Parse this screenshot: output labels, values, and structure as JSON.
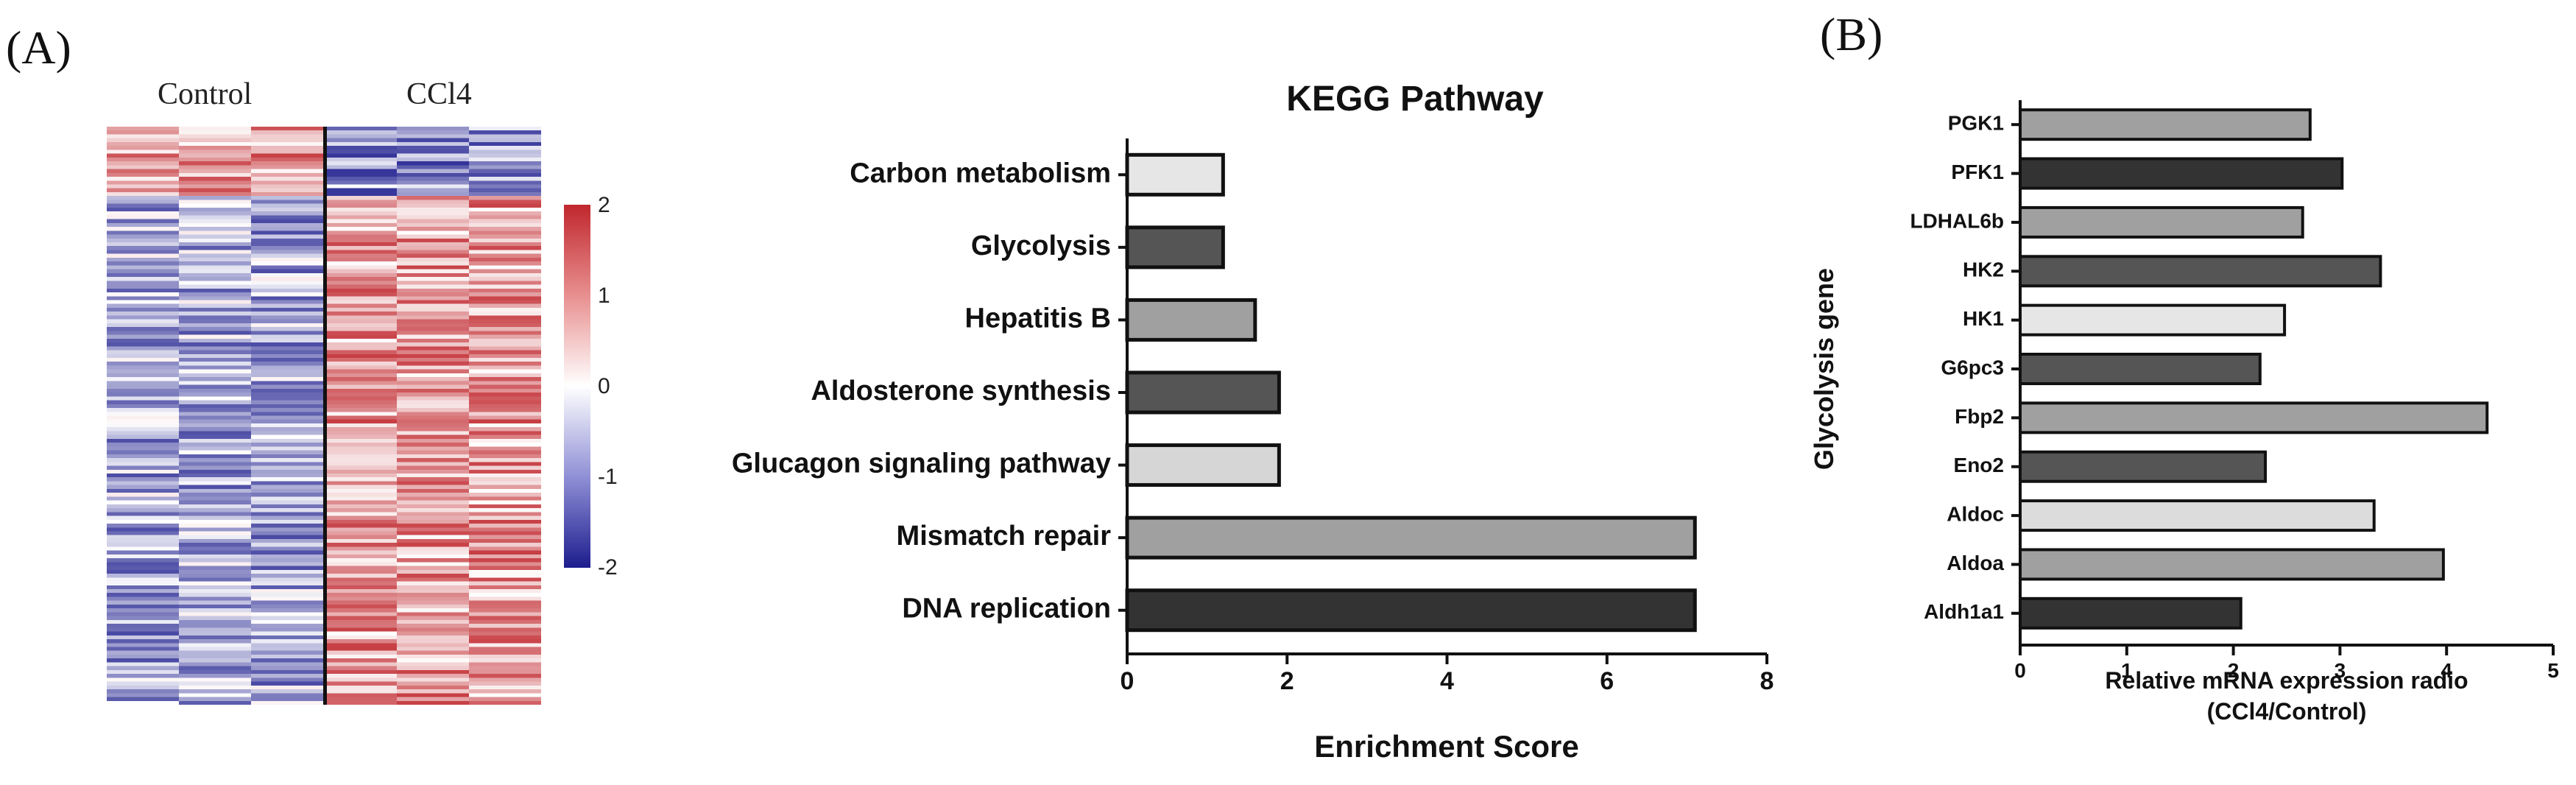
{
  "panels": {
    "a_label": "(A)",
    "b_label": "(B)"
  },
  "heatmap": {
    "groups": [
      "Control",
      "CCl4"
    ],
    "colorbar_ticks": [
      "2",
      "1",
      "0",
      "-1",
      "-2"
    ],
    "colorbar_range": [
      -2,
      2
    ],
    "colors": {
      "high": "#c0272d",
      "mid": "#ffffff",
      "low": "#1d1d8e"
    }
  },
  "chart_data": [
    {
      "type": "bar",
      "orientation": "horizontal",
      "title": "KEGG Pathway",
      "xlabel": "Enrichment Score",
      "ylabel": "",
      "categories": [
        "Carbon metabolism",
        "Glycolysis",
        "Hepatitis B",
        "Aldosterone synthesis",
        "Glucagon signaling pathway",
        "Mismatch repair",
        "DNA replication"
      ],
      "values": [
        1.2,
        1.2,
        1.6,
        1.9,
        1.9,
        7.1,
        7.1
      ],
      "bar_colors": [
        "#e6e6e6",
        "#555555",
        "#a0a0a0",
        "#555555",
        "#d6d6d6",
        "#a0a0a0",
        "#333333"
      ],
      "xlim": [
        0,
        8
      ],
      "xticks": [
        "0",
        "2",
        "4",
        "6",
        "8"
      ],
      "grid": false
    },
    {
      "type": "bar",
      "orientation": "horizontal",
      "title": "",
      "xlabel": "Relative mRNA expression radio",
      "xlabel2": "(CCl4/Control)",
      "ylabel": "Glycolysis gene",
      "categories": [
        "PGK1",
        "PFK1",
        "LDHAL6b",
        "HK2",
        "HK1",
        "G6pc3",
        "Fbp2",
        "Eno2",
        "Aldoc",
        "Aldoa",
        "Aldh1a1"
      ],
      "values": [
        2.72,
        3.02,
        2.65,
        3.38,
        2.48,
        2.25,
        4.38,
        2.3,
        3.32,
        3.97,
        2.07
      ],
      "bar_colors": [
        "#a0a0a0",
        "#333333",
        "#a0a0a0",
        "#555555",
        "#e6e6e6",
        "#555555",
        "#a0a0a0",
        "#555555",
        "#dcdcdc",
        "#a0a0a0",
        "#333333"
      ],
      "xlim": [
        0,
        5
      ],
      "xticks": [
        "0",
        "1",
        "2",
        "3",
        "4",
        "5"
      ],
      "grid": false
    }
  ]
}
